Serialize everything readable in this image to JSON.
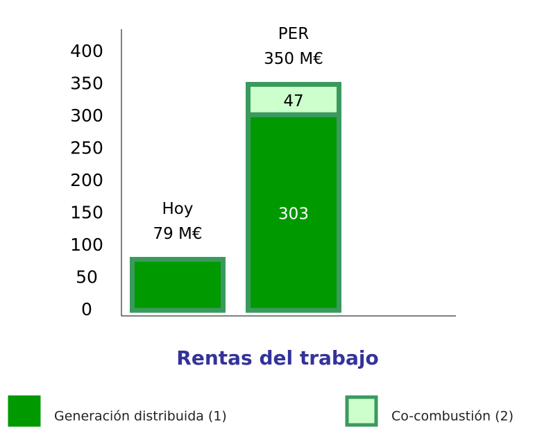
{
  "chart_data": {
    "type": "stacked_bar",
    "title": "Rentas del trabajo",
    "categories": [
      "Hoy",
      "PER"
    ],
    "annotations": [
      [
        "Hoy",
        "79 M€"
      ],
      [
        "PER",
        "350 M€"
      ]
    ],
    "series": [
      {
        "name": "Generación distribuida (1)",
        "color": "#009900",
        "border": "#3a9a5e",
        "values": [
          79,
          303
        ],
        "value_labels": [
          null,
          "303"
        ],
        "label_color": "#ffffff"
      },
      {
        "name": "Co-combustión (2)",
        "color": "#ccffcc",
        "border": "#3a9a5e",
        "values": [
          null,
          47
        ],
        "value_labels": [
          null,
          "47"
        ],
        "label_color": "#000000"
      }
    ],
    "ylim": [
      0,
      400
    ],
    "yticks": [
      0,
      50,
      100,
      150,
      200,
      250,
      300,
      350,
      400
    ],
    "grid": false,
    "legend": "bottom"
  }
}
